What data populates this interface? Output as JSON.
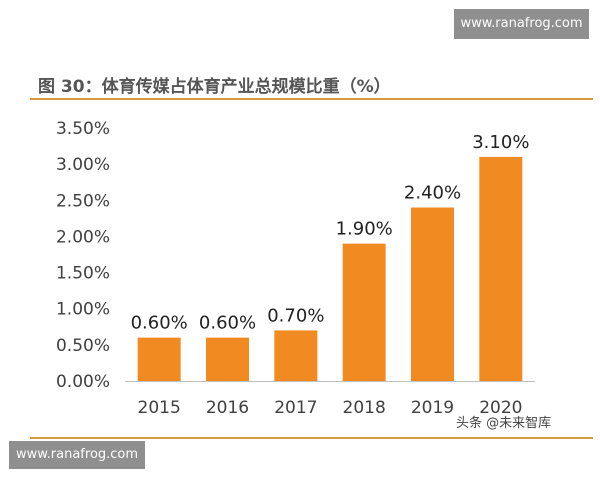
{
  "watermarks": {
    "top": "www.ranafrog.com",
    "bottom": "www.ranafrog.com"
  },
  "figure_title": "图 30：体育传媒占体育产业总规模比重（%）",
  "credit": "头条 @未来智库",
  "colors": {
    "bar": "#f28a22",
    "rule": "#d59a3a",
    "title": "#555555",
    "watermark_bg": "#8f8f8f"
  },
  "chart_data": {
    "type": "bar",
    "title": "图 30：体育传媒占体育产业总规模比重（%）",
    "xlabel": "",
    "ylabel": "",
    "categories": [
      "2015",
      "2016",
      "2017",
      "2018",
      "2019",
      "2020"
    ],
    "values": [
      0.6,
      0.6,
      0.7,
      1.9,
      2.4,
      3.1
    ],
    "data_labels": [
      "0.60%",
      "0.60%",
      "0.70%",
      "1.90%",
      "2.40%",
      "3.10%"
    ],
    "ylim": [
      0,
      3.5
    ],
    "yticks": [
      0,
      0.5,
      1.0,
      1.5,
      2.0,
      2.5,
      3.0,
      3.5
    ],
    "ytick_labels": [
      "0.00%",
      "0.50%",
      "1.00%",
      "1.50%",
      "2.00%",
      "2.50%",
      "3.00%",
      "3.50%"
    ],
    "grid": false,
    "legend": "none"
  }
}
